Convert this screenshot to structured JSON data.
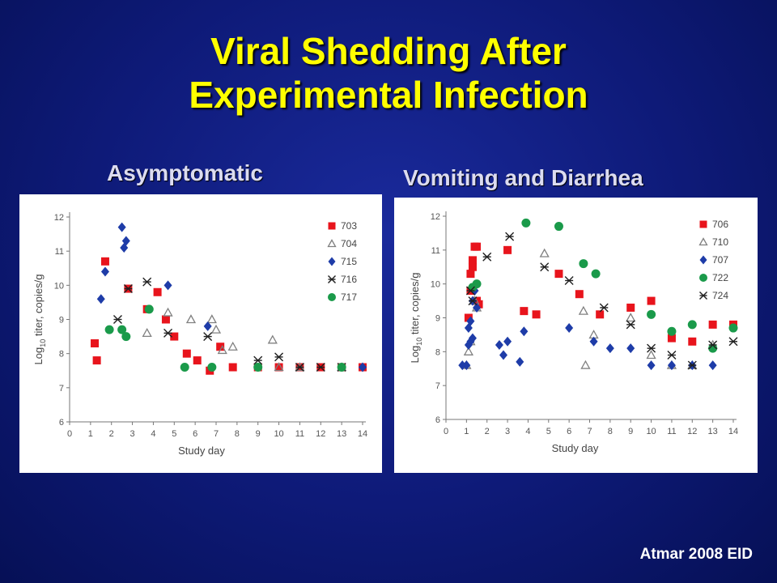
{
  "title": {
    "line1": "Viral Shedding After",
    "line2": "Experimental Infection"
  },
  "reference": "Atmar 2008 EID",
  "chart_data": [
    {
      "type": "scatter",
      "title": "Asymptomatic",
      "xlabel": "Study day",
      "ylabel": "Log10 titer, copies/g",
      "ylabel_main": "Log",
      "ylabel_sub": "10",
      "ylabel_rest": " titer, copies/g",
      "xlim": [
        0,
        14
      ],
      "ylim": [
        6,
        12
      ],
      "xticks": [
        "0",
        "1",
        "2",
        "3",
        "4",
        "5",
        "6",
        "7",
        "8",
        "9",
        "10",
        "11",
        "12",
        "13",
        "14"
      ],
      "yticks": [
        "6",
        "7",
        "8",
        "9",
        "10",
        "11",
        "12"
      ],
      "legend_position": "top-right",
      "grid": false,
      "series": [
        {
          "name": "703",
          "marker": "square",
          "color": "#e8141c",
          "x": [
            1.2,
            1.3,
            1.7,
            2.8,
            3.7,
            4.2,
            4.6,
            5.0,
            5.6,
            6.1,
            6.7,
            7.2,
            7.8,
            9.0,
            10.0,
            11.0,
            12.0,
            13.0,
            14.0
          ],
          "y": [
            8.3,
            7.8,
            10.7,
            9.9,
            9.3,
            9.8,
            9.0,
            8.5,
            8.0,
            7.8,
            7.5,
            8.2,
            7.6,
            7.6,
            7.6,
            7.6,
            7.6,
            7.6,
            7.6
          ]
        },
        {
          "name": "704",
          "marker": "triangle",
          "color": "#808080",
          "x": [
            3.7,
            4.7,
            5.8,
            6.8,
            7.0,
            7.3,
            7.8,
            9.7,
            10.0,
            11.0,
            13.0
          ],
          "y": [
            8.6,
            9.2,
            9.0,
            9.0,
            8.7,
            8.1,
            8.2,
            8.4,
            7.6,
            7.6,
            7.6
          ]
        },
        {
          "name": "715",
          "marker": "diamond",
          "color": "#1e3ca8",
          "x": [
            1.5,
            1.7,
            2.5,
            2.6,
            2.7,
            4.7,
            6.6,
            14.0
          ],
          "y": [
            9.6,
            10.4,
            11.7,
            11.1,
            11.3,
            10.0,
            8.8,
            7.6
          ]
        },
        {
          "name": "716",
          "marker": "star",
          "color": "#202020",
          "x": [
            2.3,
            2.8,
            3.7,
            4.7,
            6.6,
            9.0,
            10.0,
            11.0,
            12.0,
            13.0
          ],
          "y": [
            9.0,
            9.9,
            10.1,
            8.6,
            8.5,
            7.8,
            7.9,
            7.6,
            7.6,
            7.6
          ]
        },
        {
          "name": "717",
          "marker": "circle",
          "color": "#1a9a4a",
          "x": [
            1.9,
            2.5,
            2.7,
            3.8,
            5.5,
            6.8,
            9.0,
            13.0
          ],
          "y": [
            8.7,
            8.7,
            8.5,
            9.3,
            7.6,
            7.6,
            7.6,
            7.6
          ]
        }
      ]
    },
    {
      "type": "scatter",
      "title": "Vomiting and Diarrhea",
      "xlabel": "Study day",
      "ylabel": "Log10 titer, copies/g",
      "ylabel_main": "Log",
      "ylabel_sub": "10",
      "ylabel_rest": " titer, copies/g",
      "xlim": [
        0,
        14
      ],
      "ylim": [
        6,
        12
      ],
      "xticks": [
        "0",
        "1",
        "2",
        "3",
        "4",
        "5",
        "6",
        "7",
        "8",
        "9",
        "10",
        "11",
        "12",
        "13",
        "14"
      ],
      "yticks": [
        "6",
        "7",
        "8",
        "9",
        "10",
        "11",
        "12"
      ],
      "legend_position": "top-right",
      "grid": false,
      "series": [
        {
          "name": "706",
          "marker": "square",
          "color": "#e8141c",
          "x": [
            1.1,
            1.2,
            1.2,
            1.3,
            1.3,
            1.4,
            1.5,
            1.5,
            1.6,
            3.0,
            3.8,
            4.4,
            5.5,
            6.5,
            7.5,
            9.0,
            10.0,
            11.0,
            12.0,
            13.0,
            14.0
          ],
          "y": [
            9.0,
            9.8,
            10.3,
            10.5,
            10.7,
            11.1,
            11.1,
            9.5,
            9.4,
            11.0,
            9.2,
            9.1,
            10.3,
            9.7,
            9.1,
            9.3,
            9.5,
            8.4,
            8.3,
            8.8,
            8.8
          ]
        },
        {
          "name": "710",
          "marker": "triangle",
          "color": "#808080",
          "x": [
            1.0,
            1.1,
            1.2,
            1.4,
            1.5,
            4.8,
            6.7,
            6.8,
            7.2,
            9.0,
            10.0,
            11.0,
            12.0,
            13.0
          ],
          "y": [
            7.6,
            8.0,
            8.3,
            9.5,
            9.3,
            10.9,
            9.2,
            7.6,
            8.5,
            9.0,
            7.9,
            7.6,
            7.6,
            8.2
          ]
        },
        {
          "name": "707",
          "marker": "diamond",
          "color": "#1e3ca8",
          "x": [
            0.8,
            1.0,
            1.1,
            1.1,
            1.2,
            1.2,
            1.3,
            1.3,
            1.4,
            1.5,
            2.6,
            2.8,
            3.0,
            3.6,
            3.8,
            6.0,
            7.2,
            8.0,
            9.0,
            10.0,
            11.0,
            12.0,
            13.0
          ],
          "y": [
            7.6,
            7.6,
            8.2,
            8.7,
            8.9,
            8.3,
            8.4,
            9.5,
            9.8,
            9.3,
            8.2,
            7.9,
            8.3,
            7.7,
            8.6,
            8.7,
            8.3,
            8.1,
            8.1,
            7.6,
            7.6,
            7.6,
            7.6
          ]
        },
        {
          "name": "722",
          "marker": "circle",
          "color": "#1a9a4a",
          "x": [
            1.3,
            1.5,
            3.9,
            5.5,
            6.7,
            7.3,
            10.0,
            11.0,
            12.0,
            13.0,
            14.0
          ],
          "y": [
            9.9,
            10.0,
            11.8,
            11.7,
            10.6,
            10.3,
            9.1,
            8.6,
            8.8,
            8.1,
            8.7
          ]
        },
        {
          "name": "724",
          "marker": "star",
          "color": "#202020",
          "x": [
            1.2,
            1.3,
            2.0,
            3.1,
            4.8,
            6.0,
            7.7,
            9.0,
            10.0,
            11.0,
            12.0,
            13.0,
            14.0
          ],
          "y": [
            9.8,
            9.5,
            10.8,
            11.4,
            10.5,
            10.1,
            9.3,
            8.8,
            8.1,
            7.9,
            7.6,
            8.2,
            8.3
          ]
        }
      ]
    }
  ]
}
